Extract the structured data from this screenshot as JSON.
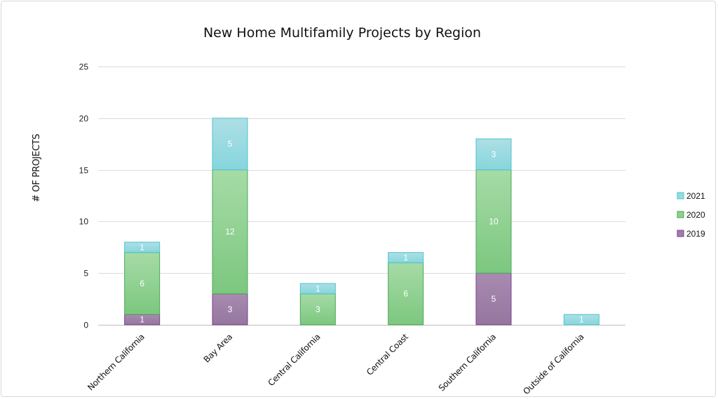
{
  "chart_data": {
    "type": "bar",
    "stacked": true,
    "title": "New Home Multifamily Projects by Region",
    "xlabel": "",
    "ylabel": "# OF PROJECTS",
    "ylim": [
      0,
      25
    ],
    "yticks": [
      0,
      5,
      10,
      15,
      20,
      25
    ],
    "grid": true,
    "legend_position": "right",
    "categories": [
      "Northern California",
      "Bay Area",
      "Central California",
      "Central Coast",
      "Southern California",
      "Outside of California"
    ],
    "series": [
      {
        "name": "2019",
        "values": [
          1,
          3,
          0,
          0,
          5,
          0
        ],
        "color": "#9e7fa6",
        "edge": "#7b3f94"
      },
      {
        "name": "2020",
        "values": [
          6,
          12,
          3,
          6,
          10,
          0
        ],
        "color": "#8fd08f",
        "edge": "#4aa85a"
      },
      {
        "name": "2021",
        "values": [
          1,
          5,
          1,
          1,
          3,
          1
        ],
        "color": "#96dbe0",
        "edge": "#4fc3cf"
      }
    ],
    "legend_order": [
      "2021",
      "2020",
      "2019"
    ]
  }
}
